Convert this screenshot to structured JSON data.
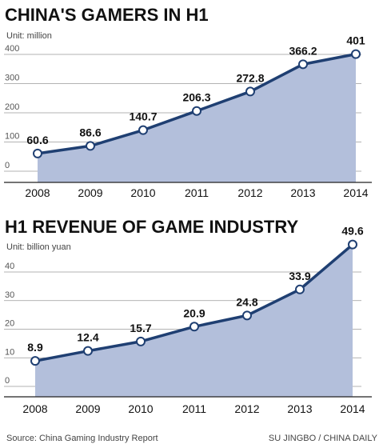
{
  "footer": {
    "source": "Source: China Gaming Industry Report",
    "credit": "SU JINGBO / CHINA DAILY"
  },
  "chart_data": [
    {
      "type": "area",
      "title": "CHINA'S GAMERS IN H1",
      "unit": "Unit: million",
      "categories": [
        "2008",
        "2009",
        "2010",
        "2011",
        "2012",
        "2013",
        "2014"
      ],
      "values": [
        60.6,
        86.6,
        140.7,
        206.3,
        272.8,
        366.2,
        401
      ],
      "value_labels": [
        "60.6",
        "86.6",
        "140.7",
        "206.3",
        "272.8",
        "366.2",
        "401"
      ],
      "yticks": [
        0,
        100,
        200,
        300,
        400
      ],
      "ylim": [
        0,
        400
      ],
      "grid": true,
      "colors": {
        "line": "#1f3f72",
        "area": "#b3bfdb"
      }
    },
    {
      "type": "area",
      "title": "H1 REVENUE OF GAME INDUSTRY",
      "unit": "Unit: billion yuan",
      "categories": [
        "2008",
        "2009",
        "2010",
        "2011",
        "2012",
        "2013",
        "2014"
      ],
      "values": [
        8.9,
        12.4,
        15.7,
        20.9,
        24.8,
        33.9,
        49.6
      ],
      "value_labels": [
        "8.9",
        "12.4",
        "15.7",
        "20.9",
        "24.8",
        "33.9",
        "49.6"
      ],
      "yticks": [
        0,
        10,
        20,
        30,
        40
      ],
      "ylim": [
        0,
        40
      ],
      "grid": true,
      "colors": {
        "line": "#1f3f72",
        "area": "#b3bfdb"
      }
    }
  ]
}
